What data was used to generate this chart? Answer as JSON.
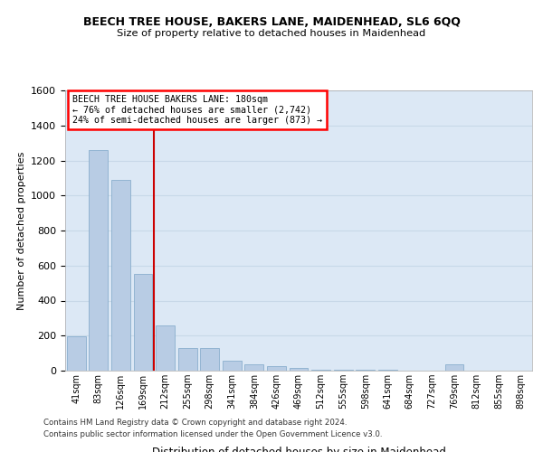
{
  "title1": "BEECH TREE HOUSE, BAKERS LANE, MAIDENHEAD, SL6 6QQ",
  "title2": "Size of property relative to detached houses in Maidenhead",
  "xlabel": "Distribution of detached houses by size in Maidenhead",
  "ylabel": "Number of detached properties",
  "categories": [
    "41sqm",
    "83sqm",
    "126sqm",
    "169sqm",
    "212sqm",
    "255sqm",
    "298sqm",
    "341sqm",
    "384sqm",
    "426sqm",
    "469sqm",
    "512sqm",
    "555sqm",
    "598sqm",
    "641sqm",
    "684sqm",
    "727sqm",
    "769sqm",
    "812sqm",
    "855sqm",
    "898sqm"
  ],
  "values": [
    195,
    1260,
    1090,
    550,
    260,
    130,
    130,
    55,
    35,
    25,
    15,
    7,
    5,
    5,
    4,
    0,
    0,
    35,
    0,
    0,
    0
  ],
  "bar_color": "#b8cce4",
  "bar_edge_color": "#7da6c8",
  "grid_color": "#c8d8e8",
  "background_color": "#dce8f5",
  "vline_color": "#cc0000",
  "vline_x": 3.5,
  "ylim": [
    0,
    1600
  ],
  "yticks": [
    0,
    200,
    400,
    600,
    800,
    1000,
    1200,
    1400,
    1600
  ],
  "annotation_line1": "BEECH TREE HOUSE BAKERS LANE: 180sqm",
  "annotation_line2": "← 76% of detached houses are smaller (2,742)",
  "annotation_line3": "24% of semi-detached houses are larger (873) →",
  "footer1": "Contains HM Land Registry data © Crown copyright and database right 2024.",
  "footer2": "Contains public sector information licensed under the Open Government Licence v3.0."
}
